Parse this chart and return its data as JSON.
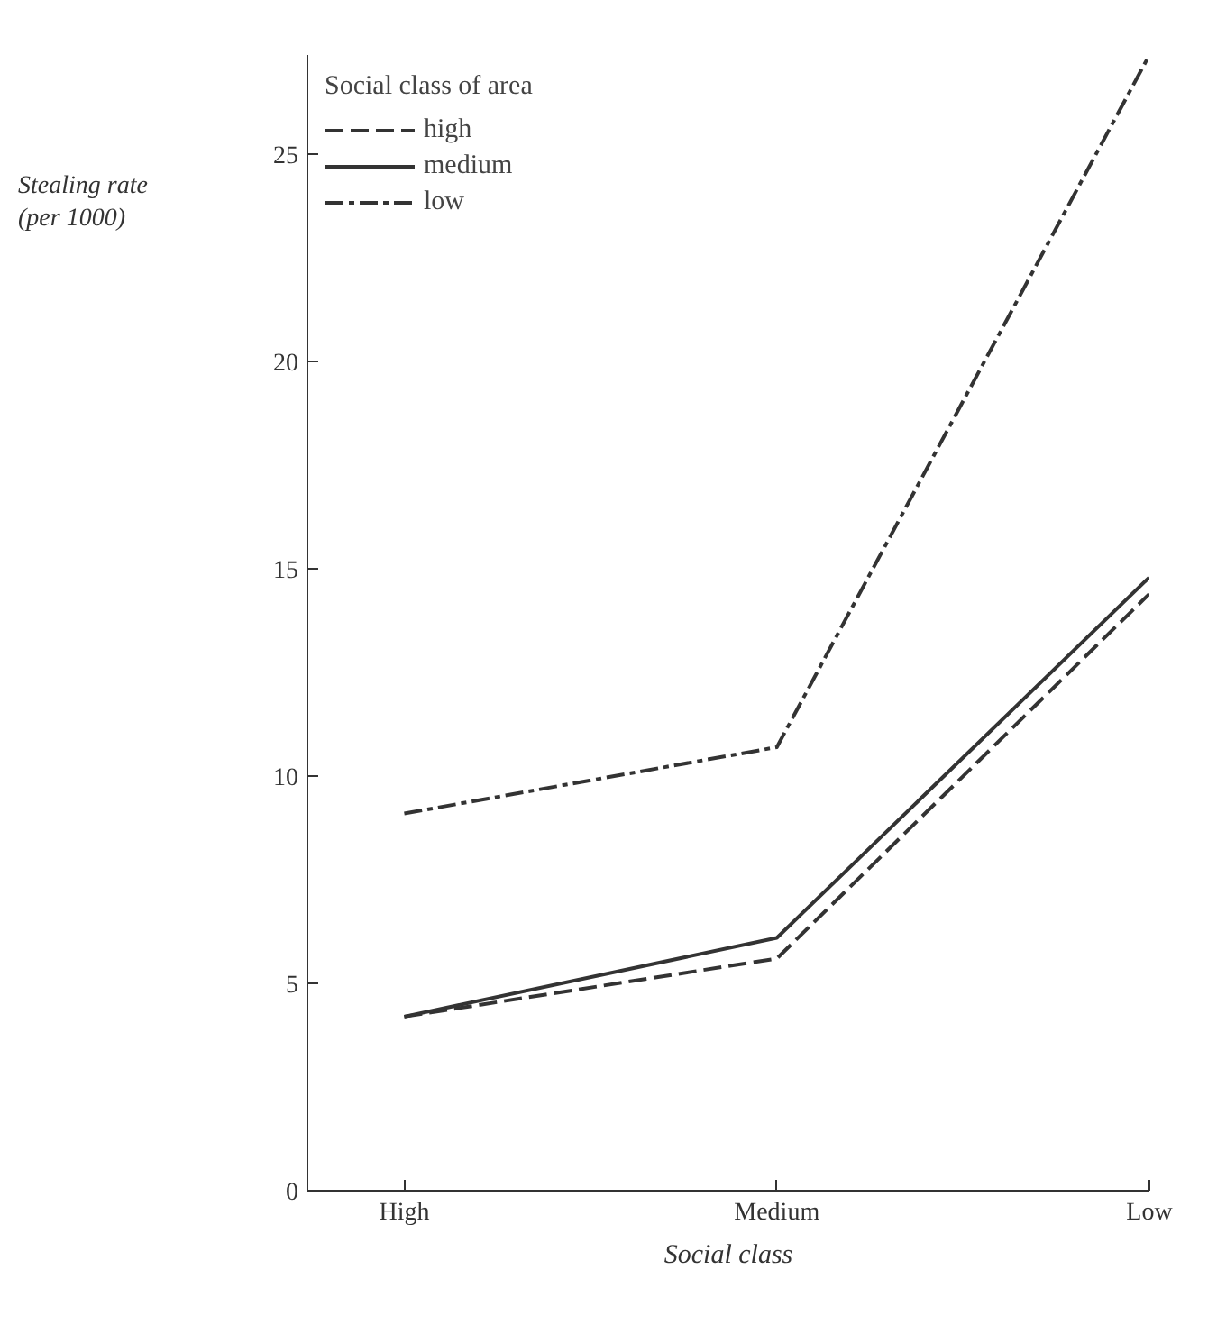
{
  "chart_data": {
    "type": "line",
    "ylabel": "Stealing rate\n(per 1000)",
    "xlabel": "Social class",
    "legend_title": "Social class of area",
    "categories": [
      "High",
      "Medium",
      "Low"
    ],
    "series": [
      {
        "name": "high",
        "color": "#333333",
        "line_style": "dashed",
        "values": [
          4.2,
          5.6,
          14.4
        ]
      },
      {
        "name": "medium",
        "color": "#333333",
        "line_style": "solid",
        "values": [
          4.2,
          6.1,
          14.8
        ]
      },
      {
        "name": "low",
        "color": "#333333",
        "line_style": "dashdot",
        "values": [
          9.1,
          10.7,
          27.4
        ]
      }
    ],
    "ylim": [
      0,
      27.4
    ],
    "yticks": [
      0,
      5,
      10,
      15,
      20,
      25
    ],
    "grid": false,
    "legend": "top left",
    "marker": "none"
  }
}
